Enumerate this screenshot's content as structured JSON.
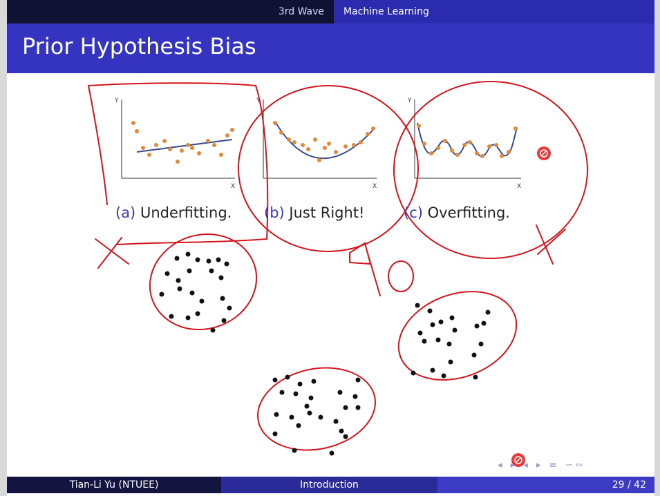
{
  "nav": {
    "section": "3rd Wave",
    "subsection": "Machine Learning"
  },
  "title": "Prior Hypothesis Bias",
  "panels": [
    {
      "label": "(a)",
      "text": "Underfitting."
    },
    {
      "label": "(b)",
      "text": "Just Right!"
    },
    {
      "label": "(c)",
      "text": "Overfitting."
    }
  ],
  "axes": {
    "y": "Y",
    "x": "X"
  },
  "footer": {
    "author": "Tian-Li Yu",
    "affiliation": "(NTUEE)",
    "section": "Introduction",
    "page": "29 / 42"
  },
  "nav_symbols": "◂ ▸ ◂ ▸ ≡ ∽∾",
  "chart_data": [
    {
      "type": "scatter",
      "title": "",
      "points_color": "#e08a3c",
      "fit": "linear"
    },
    {
      "type": "scatter",
      "title": "",
      "points_color": "#e08a3c",
      "fit": "quadratic"
    },
    {
      "type": "scatter",
      "title": "",
      "points_color": "#e08a3c",
      "fit": "wiggly"
    }
  ],
  "colors": {
    "ink": "#d4141c",
    "fit_line": "#3a4a8c"
  }
}
